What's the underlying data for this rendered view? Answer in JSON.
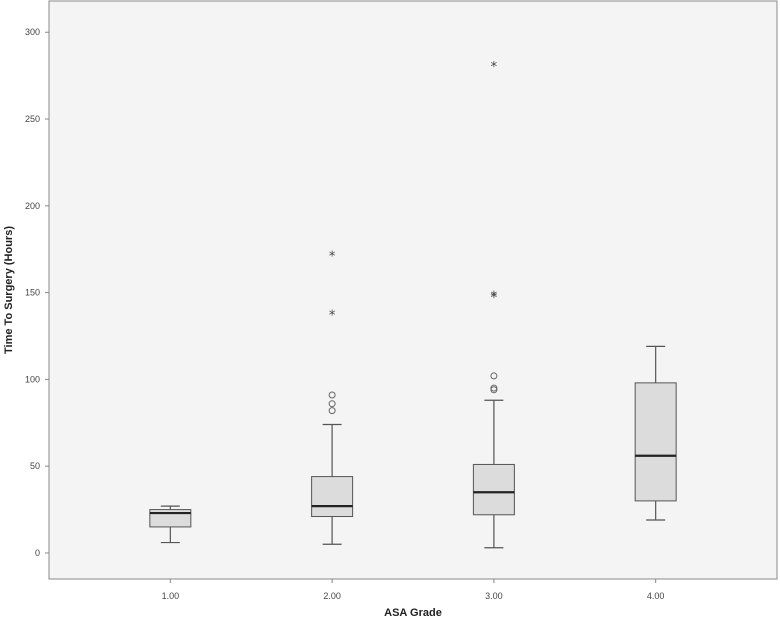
{
  "chart_data": {
    "type": "box",
    "xlabel": "ASA Grade",
    "ylabel": "Time To Surgery (Hours)",
    "ylim": [
      -15,
      318
    ],
    "yticks": [
      0,
      50,
      100,
      150,
      200,
      250,
      300
    ],
    "ytick_labels": [
      "0",
      "50",
      "100",
      "150",
      "200",
      "250",
      "300"
    ],
    "categories": [
      "1.00",
      "2.00",
      "3.00",
      "4.00"
    ],
    "boxes": [
      {
        "category": "1.00",
        "whisker_low": 6,
        "q1": 15,
        "median": 23,
        "q3": 25,
        "whisker_high": 27,
        "outliers": [],
        "extremes": []
      },
      {
        "category": "2.00",
        "whisker_low": 5,
        "q1": 21,
        "median": 27,
        "q3": 44,
        "whisker_high": 74,
        "outliers": [
          82,
          86,
          91
        ],
        "extremes": [
          138,
          172
        ]
      },
      {
        "category": "3.00",
        "whisker_low": 3,
        "q1": 22,
        "median": 35,
        "q3": 51,
        "whisker_high": 88,
        "outliers": [
          94,
          95,
          102
        ],
        "extremes": [
          148,
          149,
          281
        ]
      },
      {
        "category": "4.00",
        "whisker_low": 19,
        "q1": 30,
        "median": 56,
        "q3": 98,
        "whisker_high": 119,
        "outliers": [],
        "extremes": []
      }
    ],
    "grid": false,
    "colors": {
      "plot_background": "#f4f4f4",
      "box_fill": "#dcdcdc",
      "box_stroke": "#555555",
      "median": "#222222",
      "frame": "#888888"
    }
  }
}
